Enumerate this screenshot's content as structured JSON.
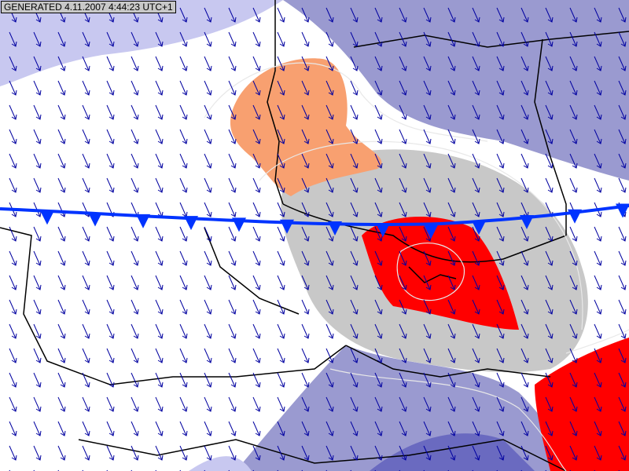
{
  "stamp": {
    "label": "GENERATED 4.11.2007 4:44:23 UTC+1"
  },
  "map": {
    "field": "wind-arrows",
    "wind_direction": "north-northwest to south-southeast",
    "front_type": "cold front",
    "colors": {
      "background": "#ffffff",
      "light_blue": "#c8c8f0",
      "blue": "#9a9ad0",
      "dark_blue": "#6a6ac0",
      "grey": "#c8c8c8",
      "orange": "#f8a070",
      "red": "#ff0000",
      "arrow": "#0000a0",
      "front": "#0033ff",
      "border": "#000000",
      "contour": "#e0e0e0"
    }
  }
}
